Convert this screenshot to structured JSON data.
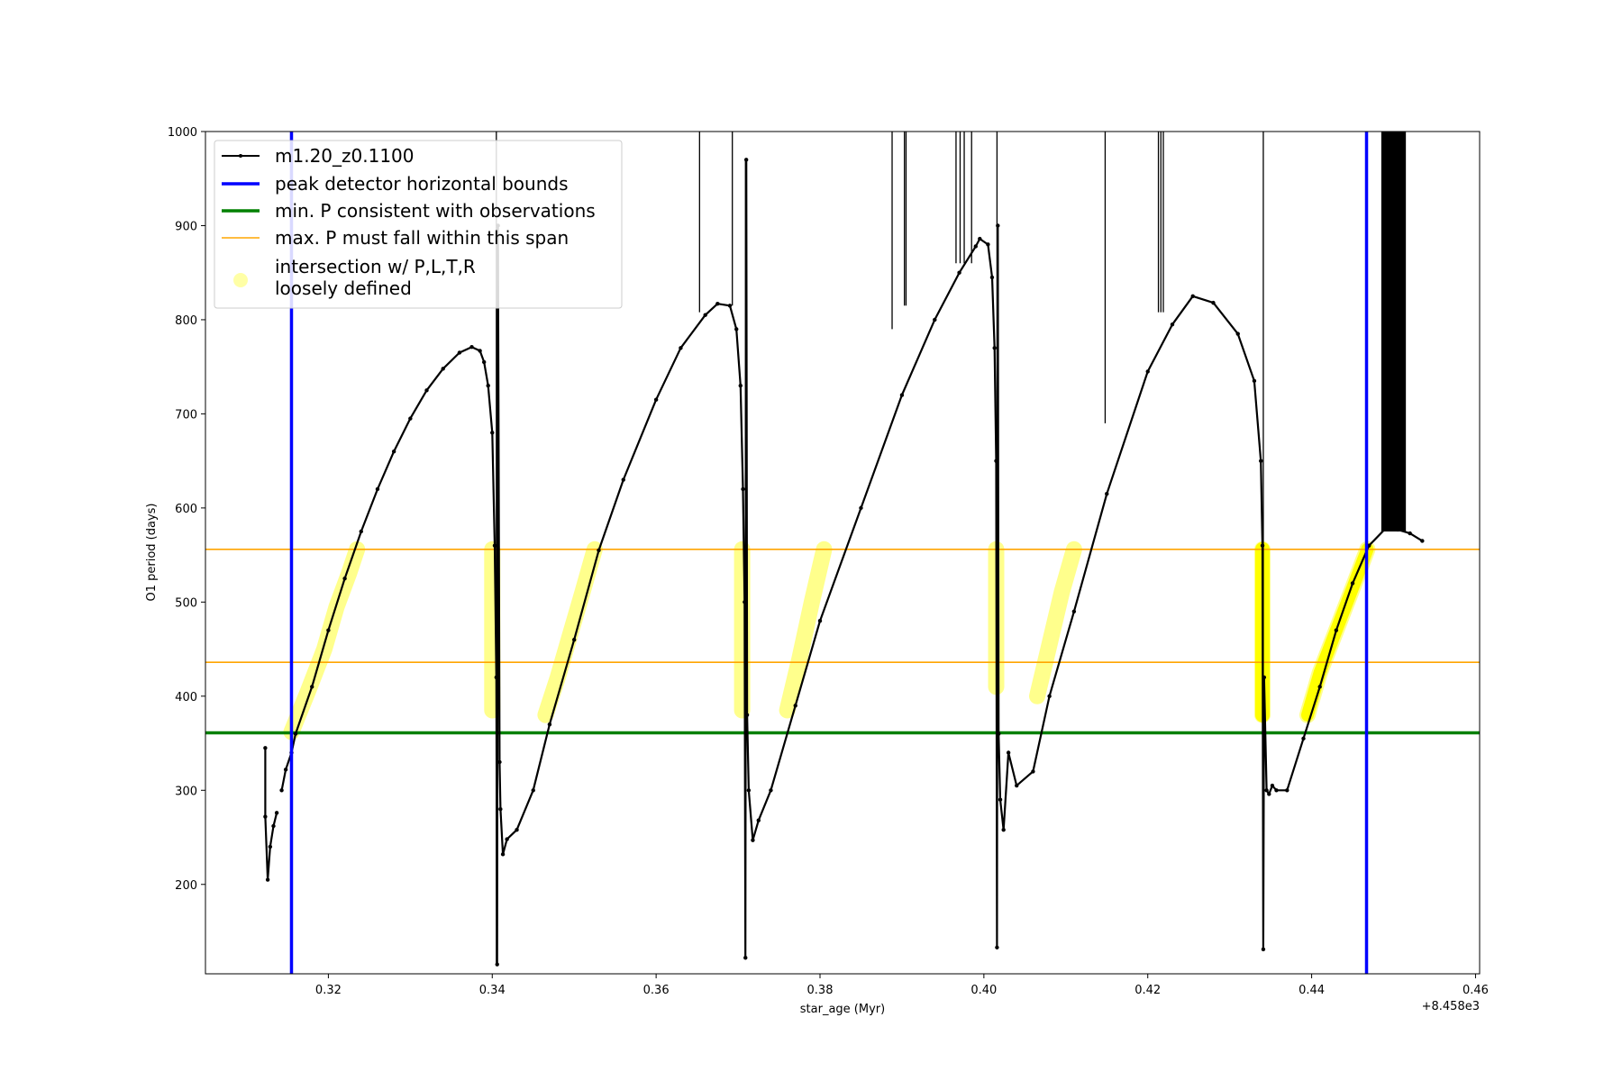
{
  "chart_data": {
    "type": "line",
    "title": "",
    "xlabel": "star_age (Myr)",
    "ylabel": "O1 period (days)",
    "x_offset_label": "+8.458e3",
    "xlim": [
      0.305,
      0.4605
    ],
    "ylim": [
      105,
      1000
    ],
    "x_ticks": [
      0.32,
      0.34,
      0.36,
      0.38,
      0.4,
      0.42,
      0.44,
      0.46
    ],
    "x_tick_labels": [
      "0.32",
      "0.34",
      "0.36",
      "0.38",
      "0.40",
      "0.42",
      "0.44",
      "0.46"
    ],
    "y_ticks": [
      200,
      300,
      400,
      500,
      600,
      700,
      800,
      900,
      1000
    ],
    "y_tick_labels": [
      "200",
      "300",
      "400",
      "500",
      "600",
      "700",
      "800",
      "900",
      "1000"
    ],
    "grid": false,
    "legend_position": "top-left",
    "legend": [
      {
        "label": "m1.20_z0.1100",
        "style": "line-marker",
        "color": "#000000"
      },
      {
        "label": "peak detector horizontal bounds",
        "style": "line",
        "color": "#0000ff"
      },
      {
        "label": "min. P consistent with observations",
        "style": "line",
        "color": "#008000"
      },
      {
        "label": "max. P must fall within this span",
        "style": "line",
        "color": "#ffa500"
      },
      {
        "label": "intersection w/ P,L,T,R",
        "label2": "loosely defined",
        "style": "marker",
        "color": "#ffff00"
      }
    ],
    "vertical_lines": {
      "name": "peak detector horizontal bounds",
      "color": "#0000ff",
      "x": [
        0.3155,
        0.4467
      ]
    },
    "min_period_line": {
      "name": "min. P consistent with observations",
      "color": "#008000",
      "y": 361
    },
    "max_period_span": {
      "name": "max. P must fall within this span",
      "color": "#ffa500",
      "y": [
        436,
        556
      ]
    },
    "series": [
      {
        "name": "m1.20_z0.1100",
        "color": "#000000",
        "segments": [
          [
            [
              0.3123,
              345
            ],
            [
              0.3123,
              272
            ],
            [
              0.3126,
              205
            ],
            [
              0.3129,
              240
            ],
            [
              0.3133,
              262
            ],
            [
              0.3137,
              276
            ]
          ],
          [
            [
              0.3143,
              300
            ],
            [
              0.3148,
              322
            ],
            [
              0.3155,
              340
            ],
            [
              0.316,
              360
            ],
            [
              0.318,
              410
            ],
            [
              0.32,
              470
            ],
            [
              0.322,
              525
            ],
            [
              0.324,
              575
            ],
            [
              0.326,
              620
            ],
            [
              0.328,
              660
            ],
            [
              0.33,
              695
            ],
            [
              0.332,
              725
            ],
            [
              0.334,
              748
            ],
            [
              0.336,
              765
            ],
            [
              0.3375,
              771
            ],
            [
              0.3385,
              767
            ],
            [
              0.339,
              755
            ],
            [
              0.3395,
              730
            ],
            [
              0.34,
              680
            ],
            [
              0.3403,
              560
            ],
            [
              0.3405,
              420
            ],
            [
              0.3406,
              115
            ],
            [
              0.3407,
              900
            ],
            [
              0.3409,
              330
            ],
            [
              0.341,
              280
            ],
            [
              0.3413,
              232
            ],
            [
              0.3418,
              248
            ],
            [
              0.343,
              258
            ],
            [
              0.345,
              300
            ],
            [
              0.347,
              370
            ],
            [
              0.35,
              460
            ],
            [
              0.353,
              555
            ],
            [
              0.356,
              630
            ],
            [
              0.36,
              715
            ],
            [
              0.363,
              770
            ],
            [
              0.366,
              805
            ],
            [
              0.3675,
              817
            ],
            [
              0.369,
              815
            ],
            [
              0.3698,
              790
            ],
            [
              0.3703,
              730
            ],
            [
              0.3706,
              620
            ],
            [
              0.3708,
              500
            ],
            [
              0.3709,
              122
            ],
            [
              0.371,
              970
            ],
            [
              0.3711,
              380
            ],
            [
              0.3713,
              300
            ],
            [
              0.3718,
              247
            ],
            [
              0.3725,
              268
            ],
            [
              0.374,
              300
            ],
            [
              0.377,
              390
            ],
            [
              0.38,
              480
            ],
            [
              0.385,
              600
            ],
            [
              0.39,
              720
            ],
            [
              0.394,
              800
            ],
            [
              0.397,
              850
            ],
            [
              0.399,
              878
            ],
            [
              0.3995,
              886
            ],
            [
              0.4005,
              880
            ],
            [
              0.401,
              845
            ],
            [
              0.4013,
              770
            ],
            [
              0.4015,
              650
            ],
            [
              0.4016,
              133
            ],
            [
              0.4017,
              900
            ],
            [
              0.4018,
              360
            ],
            [
              0.402,
              290
            ],
            [
              0.4024,
              258
            ],
            [
              0.403,
              340
            ],
            [
              0.404,
              305
            ],
            [
              0.406,
              320
            ],
            [
              0.408,
              400
            ],
            [
              0.411,
              490
            ],
            [
              0.415,
              615
            ],
            [
              0.42,
              745
            ],
            [
              0.423,
              795
            ],
            [
              0.4255,
              825
            ],
            [
              0.428,
              818
            ],
            [
              0.431,
              785
            ],
            [
              0.433,
              735
            ],
            [
              0.4338,
              650
            ],
            [
              0.434,
              560
            ],
            [
              0.4341,
              131
            ],
            [
              0.4342,
              420
            ],
            [
              0.4345,
              300
            ],
            [
              0.4348,
              296
            ],
            [
              0.4352,
              305
            ],
            [
              0.4357,
              300
            ],
            [
              0.437,
              300
            ],
            [
              0.439,
              355
            ],
            [
              0.441,
              410
            ],
            [
              0.443,
              470
            ],
            [
              0.445,
              520
            ],
            [
              0.447,
              560
            ],
            [
              0.449,
              578
            ],
            [
              0.4505,
              577
            ],
            [
              0.452,
              573
            ],
            [
              0.4535,
              565
            ]
          ]
        ],
        "spikes": [
          {
            "x": 0.3405,
            "y": [
              115,
              1000
            ]
          },
          {
            "x": 0.3653,
            "y": [
              808,
              1000
            ]
          },
          {
            "x": 0.3693,
            "y": [
              815,
              1000
            ]
          },
          {
            "x": 0.3709,
            "y": [
              122,
              970
            ]
          },
          {
            "x": 0.3888,
            "y": [
              790,
              1000
            ]
          },
          {
            "x": 0.3903,
            "y": [
              815,
              1000
            ]
          },
          {
            "x": 0.3905,
            "y": [
              815,
              1000
            ]
          },
          {
            "x": 0.3966,
            "y": [
              860,
              1000
            ]
          },
          {
            "x": 0.3971,
            "y": [
              860,
              1000
            ]
          },
          {
            "x": 0.3976,
            "y": [
              860,
              1000
            ]
          },
          {
            "x": 0.3985,
            "y": [
              860,
              1000
            ]
          },
          {
            "x": 0.4016,
            "y": [
              133,
              1000
            ]
          },
          {
            "x": 0.4148,
            "y": [
              690,
              1000
            ]
          },
          {
            "x": 0.4213,
            "y": [
              808,
              1000
            ]
          },
          {
            "x": 0.4216,
            "y": [
              808,
              1000
            ]
          },
          {
            "x": 0.4219,
            "y": [
              808,
              1000
            ]
          },
          {
            "x": 0.4341,
            "y": [
              131,
              1000
            ]
          }
        ],
        "dense_band": {
          "x": [
            0.4485,
            0.4515
          ],
          "y": [
            575,
            1000
          ]
        }
      },
      {
        "name": "intersection w/ P,L,T,R loosely defined",
        "color": "#ffff00",
        "segments": [
          [
            [
              0.3155,
              362
            ],
            [
              0.3175,
              405
            ],
            [
              0.3195,
              450
            ],
            [
              0.321,
              495
            ],
            [
              0.3225,
              530
            ],
            [
              0.3235,
              556
            ]
          ],
          [
            [
              0.34,
              385
            ],
            [
              0.34,
              556
            ]
          ],
          [
            [
              0.3465,
              380
            ],
            [
              0.348,
              420
            ],
            [
              0.3495,
              465
            ],
            [
              0.351,
              510
            ],
            [
              0.3525,
              556
            ]
          ],
          [
            [
              0.3705,
              385
            ],
            [
              0.3705,
              556
            ]
          ],
          [
            [
              0.376,
              385
            ],
            [
              0.3775,
              440
            ],
            [
              0.379,
              500
            ],
            [
              0.3805,
              556
            ]
          ],
          [
            [
              0.4015,
              410
            ],
            [
              0.4015,
              556
            ]
          ],
          [
            [
              0.4065,
              400
            ],
            [
              0.408,
              455
            ],
            [
              0.4095,
              510
            ],
            [
              0.411,
              556
            ]
          ],
          [
            [
              0.434,
              380
            ],
            [
              0.434,
              556
            ]
          ],
          [
            [
              0.4395,
              380
            ],
            [
              0.441,
              425
            ],
            [
              0.443,
              470
            ],
            [
              0.445,
              515
            ],
            [
              0.4468,
              556
            ]
          ]
        ]
      }
    ]
  }
}
